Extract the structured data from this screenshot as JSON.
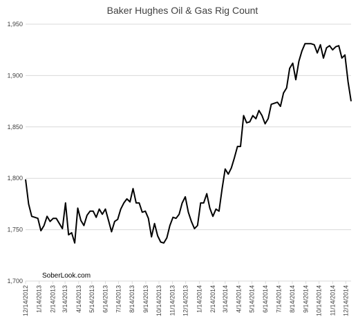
{
  "chart_data": {
    "type": "line",
    "title": "Baker Hughes Oil & Gas Rig Count",
    "watermark": "SoberLook.com",
    "xlabel": "",
    "ylabel": "",
    "ylim": [
      1700,
      1950
    ],
    "yticks": [
      1700,
      1750,
      1800,
      1850,
      1900,
      1950
    ],
    "ytick_labels": [
      "1,700",
      "1,750",
      "1,800",
      "1,850",
      "1,900",
      "1,950"
    ],
    "xticks": [
      "12/14/2012",
      "1/14/2013",
      "2/14/2013",
      "3/14/2013",
      "4/14/2013",
      "5/14/2013",
      "6/14/2013",
      "7/14/2013",
      "8/14/2013",
      "9/14/2013",
      "10/14/2013",
      "11/14/2013",
      "12/14/2013",
      "1/14/2014",
      "2/14/2014",
      "3/14/2014",
      "4/14/2014",
      "5/14/2014",
      "6/14/2014",
      "7/14/2014",
      "8/14/2014",
      "9/14/2014",
      "10/14/2014",
      "11/14/2014",
      "12/14/2014"
    ],
    "x_start": "2012-12-14",
    "x_end": "2014-12-26",
    "grid": true,
    "line_color": "#000000",
    "grid_color": "#d9d9d9",
    "series": [
      {
        "x": [
          "2012-12-14",
          "2012-12-21",
          "2012-12-28",
          "2013-01-04",
          "2013-01-11",
          "2013-01-18",
          "2013-01-25",
          "2013-02-01",
          "2013-02-08",
          "2013-02-15",
          "2013-02-22",
          "2013-03-01",
          "2013-03-08",
          "2013-03-15",
          "2013-03-22",
          "2013-03-29",
          "2013-04-05",
          "2013-04-12",
          "2013-04-19",
          "2013-04-26",
          "2013-05-03",
          "2013-05-10",
          "2013-05-17",
          "2013-05-24",
          "2013-05-31",
          "2013-06-07",
          "2013-06-14",
          "2013-06-21",
          "2013-06-28",
          "2013-07-05",
          "2013-07-12",
          "2013-07-19",
          "2013-07-26",
          "2013-08-02",
          "2013-08-09",
          "2013-08-16",
          "2013-08-23",
          "2013-08-30",
          "2013-09-06",
          "2013-09-13",
          "2013-09-20",
          "2013-09-27",
          "2013-10-04",
          "2013-10-11",
          "2013-10-18",
          "2013-10-25",
          "2013-11-01",
          "2013-11-08",
          "2013-11-15",
          "2013-11-22",
          "2013-11-29",
          "2013-12-06",
          "2013-12-13",
          "2013-12-20",
          "2013-12-27",
          "2014-01-03",
          "2014-01-10",
          "2014-01-17",
          "2014-01-24",
          "2014-01-31",
          "2014-02-07",
          "2014-02-14",
          "2014-02-21",
          "2014-02-28",
          "2014-03-07",
          "2014-03-14",
          "2014-03-21",
          "2014-03-28",
          "2014-04-04",
          "2014-04-11",
          "2014-04-18",
          "2014-04-25",
          "2014-05-02",
          "2014-05-09",
          "2014-05-16",
          "2014-05-23",
          "2014-05-30",
          "2014-06-06",
          "2014-06-13",
          "2014-06-20",
          "2014-06-27",
          "2014-07-04",
          "2014-07-11",
          "2014-07-18",
          "2014-07-25",
          "2014-08-01",
          "2014-08-08",
          "2014-08-15",
          "2014-08-22",
          "2014-08-29",
          "2014-09-05",
          "2014-09-12",
          "2014-09-19",
          "2014-09-26",
          "2014-10-03",
          "2014-10-10",
          "2014-10-17",
          "2014-10-24",
          "2014-10-31",
          "2014-11-07",
          "2014-11-14",
          "2014-11-21",
          "2014-11-28",
          "2014-12-05",
          "2014-12-12",
          "2014-12-19",
          "2014-12-26"
        ],
        "values": [
          1799,
          1775,
          1763,
          1762,
          1761,
          1749,
          1754,
          1763,
          1758,
          1761,
          1761,
          1756,
          1751,
          1776,
          1745,
          1747,
          1737,
          1771,
          1759,
          1754,
          1764,
          1768,
          1768,
          1762,
          1770,
          1765,
          1770,
          1759,
          1748,
          1758,
          1760,
          1770,
          1776,
          1780,
          1777,
          1790,
          1776,
          1776,
          1767,
          1768,
          1761,
          1743,
          1756,
          1744,
          1738,
          1737,
          1742,
          1754,
          1762,
          1761,
          1765,
          1776,
          1782,
          1767,
          1758,
          1751,
          1754,
          1776,
          1776,
          1785,
          1771,
          1763,
          1770,
          1768,
          1790,
          1809,
          1804,
          1810,
          1820,
          1831,
          1831,
          1861,
          1854,
          1855,
          1861,
          1858,
          1866,
          1861,
          1853,
          1858,
          1872,
          1873,
          1874,
          1870,
          1883,
          1888,
          1907,
          1912,
          1896,
          1914,
          1924,
          1931,
          1931,
          1931,
          1930,
          1922,
          1930,
          1917,
          1927,
          1929,
          1925,
          1928,
          1929,
          1917,
          1920,
          1894,
          1875
        ]
      }
    ]
  }
}
